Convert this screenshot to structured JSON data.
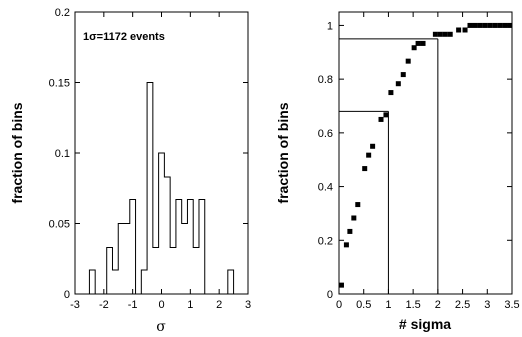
{
  "chart_data": [
    {
      "type": "histogram",
      "ylabel": "fraction of bins",
      "xlabel": "σ",
      "annotation": "1σ=1172 events",
      "xlim": [
        -3,
        3
      ],
      "ylim": [
        0,
        0.2
      ],
      "xticks": [
        "-3",
        "-2",
        "-1",
        "0",
        "1",
        "2",
        "3"
      ],
      "yticks": [
        "0",
        "0.05",
        "0.1",
        "0.15",
        "0.2"
      ],
      "bin_width": 0.2,
      "bins": [
        {
          "x": -2.4,
          "y": 0.017
        },
        {
          "x": -2.2,
          "y": 0.0
        },
        {
          "x": -2.0,
          "y": 0.0
        },
        {
          "x": -1.8,
          "y": 0.033
        },
        {
          "x": -1.6,
          "y": 0.017
        },
        {
          "x": -1.4,
          "y": 0.05
        },
        {
          "x": -1.2,
          "y": 0.05
        },
        {
          "x": -1.0,
          "y": 0.067
        },
        {
          "x": -0.8,
          "y": 0.0
        },
        {
          "x": -0.6,
          "y": 0.017
        },
        {
          "x": -0.4,
          "y": 0.15
        },
        {
          "x": -0.2,
          "y": 0.033
        },
        {
          "x": 0.0,
          "y": 0.1
        },
        {
          "x": 0.2,
          "y": 0.083
        },
        {
          "x": 0.4,
          "y": 0.033
        },
        {
          "x": 0.6,
          "y": 0.067
        },
        {
          "x": 0.8,
          "y": 0.05
        },
        {
          "x": 1.0,
          "y": 0.067
        },
        {
          "x": 1.2,
          "y": 0.033
        },
        {
          "x": 1.4,
          "y": 0.067
        },
        {
          "x": 1.6,
          "y": 0.0
        },
        {
          "x": 1.8,
          "y": 0.0
        },
        {
          "x": 2.0,
          "y": 0.0
        },
        {
          "x": 2.2,
          "y": 0.0
        },
        {
          "x": 2.4,
          "y": 0.017
        }
      ]
    },
    {
      "type": "scatter",
      "ylabel": "fraction of bins",
      "xlabel": "# sigma",
      "xlim": [
        0,
        3.5
      ],
      "ylim": [
        0,
        1.05
      ],
      "xticks": [
        "0",
        "0.5",
        "1",
        "1.5",
        "2",
        "2.5",
        "3",
        "3.5"
      ],
      "yticks": [
        "0",
        "0.2",
        "0.4",
        "0.6",
        "0.8",
        "1"
      ],
      "points": [
        [
          0.05,
          0.033
        ],
        [
          0.15,
          0.183
        ],
        [
          0.22,
          0.233
        ],
        [
          0.3,
          0.283
        ],
        [
          0.38,
          0.333
        ],
        [
          0.52,
          0.467
        ],
        [
          0.6,
          0.517
        ],
        [
          0.68,
          0.55
        ],
        [
          0.85,
          0.65
        ],
        [
          0.95,
          0.667
        ],
        [
          1.05,
          0.75
        ],
        [
          1.2,
          0.783
        ],
        [
          1.3,
          0.817
        ],
        [
          1.4,
          0.867
        ],
        [
          1.52,
          0.917
        ],
        [
          1.6,
          0.933
        ],
        [
          1.7,
          0.933
        ],
        [
          1.95,
          0.967
        ],
        [
          2.05,
          0.967
        ],
        [
          2.15,
          0.967
        ],
        [
          2.25,
          0.967
        ],
        [
          2.42,
          0.983
        ],
        [
          2.55,
          0.983
        ],
        [
          2.65,
          1.0
        ],
        [
          2.75,
          1.0
        ],
        [
          2.85,
          1.0
        ],
        [
          2.95,
          1.0
        ],
        [
          3.05,
          1.0
        ],
        [
          3.15,
          1.0
        ],
        [
          3.25,
          1.0
        ],
        [
          3.35,
          1.0
        ],
        [
          3.45,
          1.0
        ]
      ],
      "reference_lines": [
        {
          "x": 1,
          "y": 0.68
        },
        {
          "x": 2,
          "y": 0.95
        }
      ]
    }
  ]
}
